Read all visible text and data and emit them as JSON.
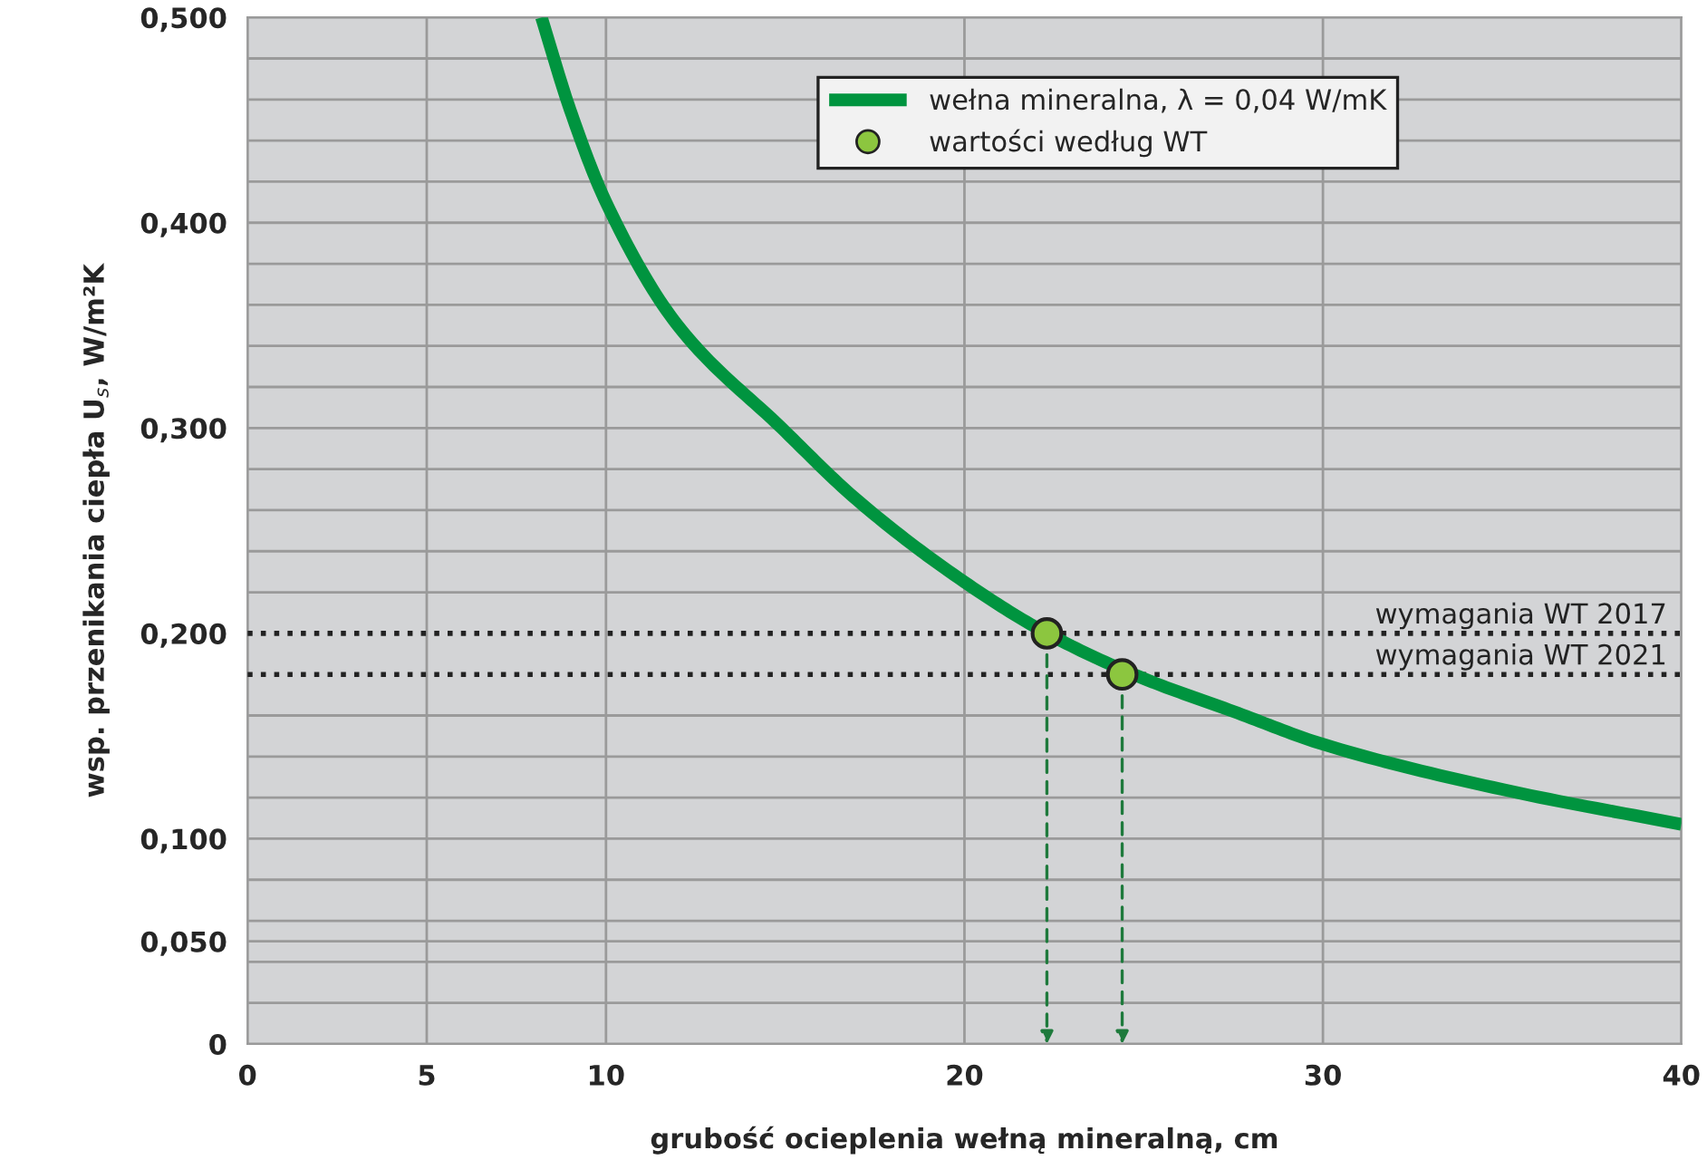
{
  "chart_data": {
    "type": "line",
    "xlabel": "grubość ocieplenia wełną mineralną, cm",
    "ylabel": "wsp. przenikania ciepła U$_{s}$, W/m²K",
    "xlim": [
      0,
      40
    ],
    "xticks": [
      0,
      5,
      10,
      20,
      30,
      40
    ],
    "ylim": [
      0,
      0.5
    ],
    "yticks": [
      {
        "value": 0,
        "label": "0"
      },
      {
        "value": 0.02,
        "label": null
      },
      {
        "value": 0.04,
        "label": null
      },
      {
        "value": 0.05,
        "label": "0,050"
      },
      {
        "value": 0.06,
        "label": null
      },
      {
        "value": 0.08,
        "label": null
      },
      {
        "value": 0.1,
        "label": "0,100"
      },
      {
        "value": 0.12,
        "label": null
      },
      {
        "value": 0.14,
        "label": null
      },
      {
        "value": 0.16,
        "label": null
      },
      {
        "value": 0.2,
        "label": "0,200"
      },
      {
        "value": 0.22,
        "label": null
      },
      {
        "value": 0.24,
        "label": null
      },
      {
        "value": 0.26,
        "label": null
      },
      {
        "value": 0.28,
        "label": null
      },
      {
        "value": 0.3,
        "label": "0,300"
      },
      {
        "value": 0.32,
        "label": null
      },
      {
        "value": 0.34,
        "label": null
      },
      {
        "value": 0.36,
        "label": null
      },
      {
        "value": 0.38,
        "label": null
      },
      {
        "value": 0.4,
        "label": "0,400"
      },
      {
        "value": 0.42,
        "label": null
      },
      {
        "value": 0.44,
        "label": null
      },
      {
        "value": 0.46,
        "label": null
      },
      {
        "value": 0.48,
        "label": null
      },
      {
        "value": 0.5,
        "label": "0,500"
      }
    ],
    "grid": true,
    "legend": "top",
    "series": [
      {
        "name": "wełna mineralna, λ = 0,04 W/mK",
        "color": "#00943f",
        "x": [
          8.2,
          9,
          10,
          12,
          14.9,
          17,
          20,
          22.3,
          25,
          27.5,
          30,
          35,
          40
        ],
        "values": [
          0.5,
          0.455,
          0.41,
          0.35,
          0.3,
          0.265,
          0.225,
          0.2,
          0.178,
          0.162,
          0.146,
          0.124,
          0.107
        ]
      },
      {
        "name": "wartości według WT",
        "type": "scatter",
        "color": "#8cc63f",
        "marker": "circle",
        "x": [
          22.3,
          24.4
        ],
        "values": [
          0.2,
          0.18
        ]
      }
    ],
    "ref_lines": [
      {
        "axis": "y",
        "value": 0.2,
        "label": "wymagania WT 2017",
        "color": "#222222",
        "line_style": "dotted"
      },
      {
        "axis": "y",
        "value": 0.18,
        "label": "wymagania WT 2021",
        "color": "#222222",
        "line_style": "dotted"
      }
    ]
  }
}
